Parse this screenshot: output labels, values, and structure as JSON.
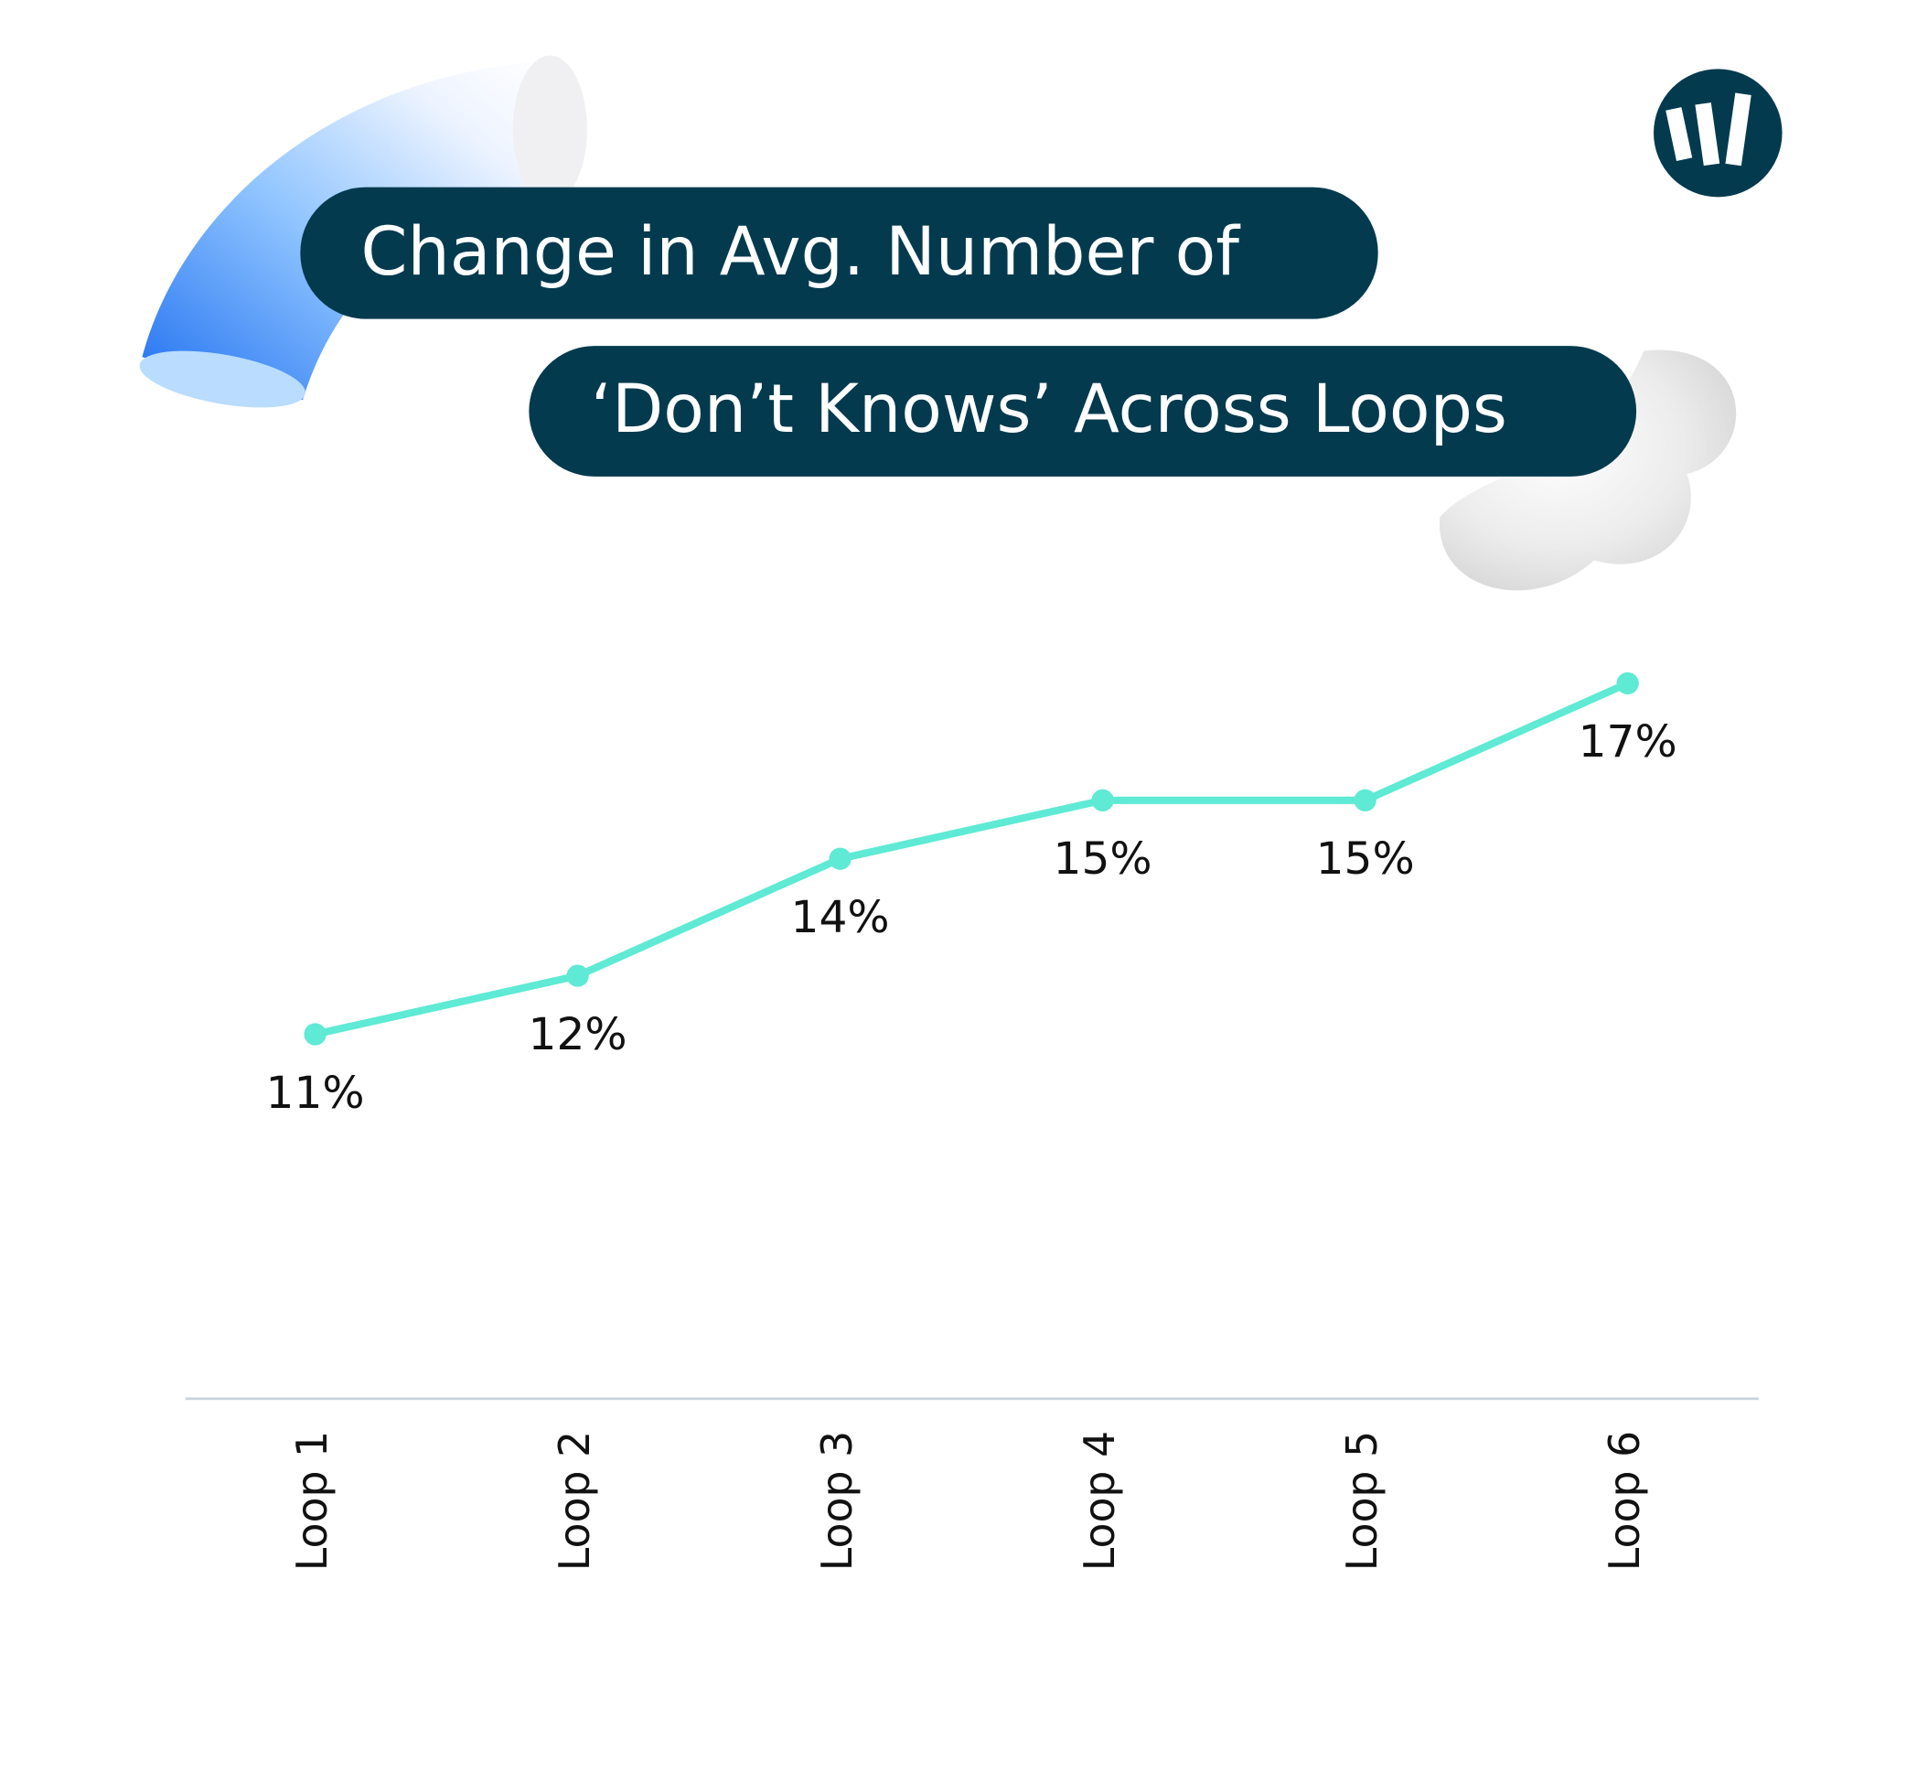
{
  "chart_data": {
    "type": "line",
    "title": [
      "Change in Avg. Number of",
      "‘Don’t Knows’ Across Loops"
    ],
    "categories": [
      "Loop 1",
      "Loop 2",
      "Loop 3",
      "Loop 4",
      "Loop 5",
      "Loop 6"
    ],
    "series": [
      {
        "color": "#5eead4",
        "values": [
          11,
          12,
          14,
          15,
          15,
          17
        ],
        "value_labels": [
          "11%",
          "12%",
          "14%",
          "15%",
          "15%",
          "17%"
        ]
      }
    ]
  }
}
